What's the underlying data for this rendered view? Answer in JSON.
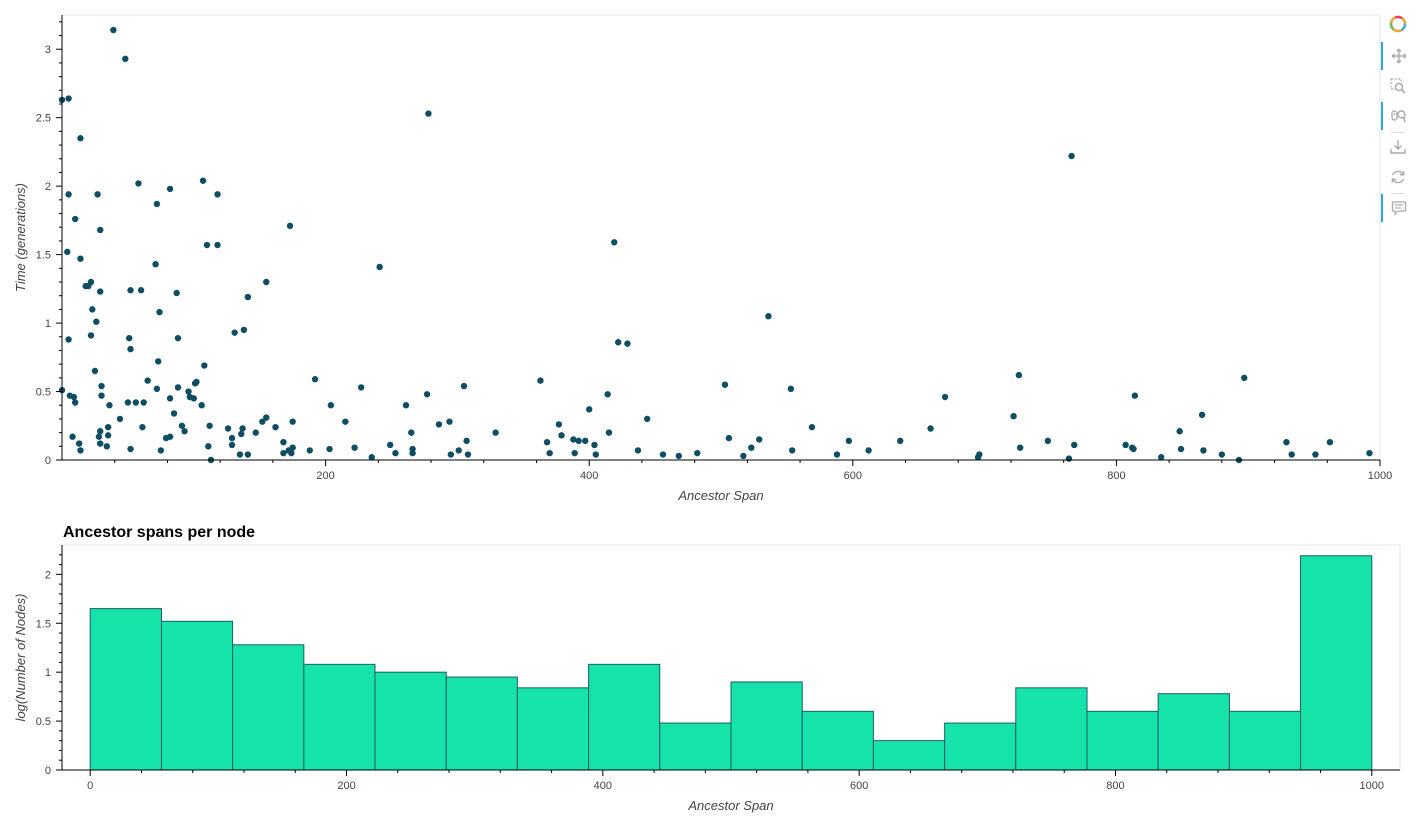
{
  "colors": {
    "point": "#0f4d63",
    "bar_fill": "#16e3aa",
    "bar_stroke": "#1d5d63",
    "axis": "#000000",
    "plot_border": "#e5e5e5",
    "tool_active": "#26aae1",
    "tool_icon": "#aaaaaa"
  },
  "toolbar": {
    "tools": [
      {
        "icon": "bokeh-logo-icon",
        "active": false
      },
      {
        "icon": "pan-icon",
        "active": true
      },
      {
        "icon": "box-zoom-icon",
        "active": false
      },
      {
        "icon": "wheel-zoom-icon",
        "active": true
      },
      {
        "icon": "save-icon",
        "active": false
      },
      {
        "icon": "reset-icon",
        "active": false
      },
      {
        "icon": "hover-icon",
        "active": true
      }
    ]
  },
  "chart_data": [
    {
      "type": "scatter",
      "title": "",
      "xlabel": "Ancestor Span",
      "ylabel": "Time (generations)",
      "xlim": [
        0,
        1000
      ],
      "ylim": [
        0,
        3.25
      ],
      "xticks": [
        "200",
        "400",
        "600",
        "800",
        "1000"
      ],
      "yticks": [
        "0",
        "0.5",
        "1",
        "1.5",
        "2",
        "2.5",
        "3"
      ],
      "grid": false,
      "points": [
        [
          39,
          3.14
        ],
        [
          48,
          2.93
        ],
        [
          0,
          2.63
        ],
        [
          5,
          2.64
        ],
        [
          278,
          2.53
        ],
        [
          14,
          2.35
        ],
        [
          766,
          2.22
        ],
        [
          5,
          1.94
        ],
        [
          27,
          1.94
        ],
        [
          58,
          2.02
        ],
        [
          82,
          1.98
        ],
        [
          107,
          2.04
        ],
        [
          118,
          1.94
        ],
        [
          72,
          1.87
        ],
        [
          10,
          1.76
        ],
        [
          29,
          1.68
        ],
        [
          4,
          1.52
        ],
        [
          14,
          1.47
        ],
        [
          110,
          1.57
        ],
        [
          118,
          1.57
        ],
        [
          173,
          1.71
        ],
        [
          241,
          1.41
        ],
        [
          419,
          1.59
        ],
        [
          71,
          1.43
        ],
        [
          22,
          1.3
        ],
        [
          18,
          1.27
        ],
        [
          20,
          1.27
        ],
        [
          29,
          1.23
        ],
        [
          52,
          1.24
        ],
        [
          60,
          1.24
        ],
        [
          87,
          1.22
        ],
        [
          141,
          1.19
        ],
        [
          155,
          1.3
        ],
        [
          23,
          1.1
        ],
        [
          74,
          1.08
        ],
        [
          26,
          1.01
        ],
        [
          536,
          1.05
        ],
        [
          5,
          0.88
        ],
        [
          22,
          0.91
        ],
        [
          51,
          0.89
        ],
        [
          88,
          0.89
        ],
        [
          131,
          0.93
        ],
        [
          138,
          0.95
        ],
        [
          52,
          0.81
        ],
        [
          422,
          0.86
        ],
        [
          429,
          0.85
        ],
        [
          25,
          0.65
        ],
        [
          73,
          0.72
        ],
        [
          108,
          0.69
        ],
        [
          65,
          0.58
        ],
        [
          102,
          0.57
        ],
        [
          101,
          0.56
        ],
        [
          192,
          0.59
        ],
        [
          0,
          0.51
        ],
        [
          30,
          0.54
        ],
        [
          72,
          0.52
        ],
        [
          88,
          0.53
        ],
        [
          96,
          0.5
        ],
        [
          227,
          0.53
        ],
        [
          305,
          0.54
        ],
        [
          363,
          0.58
        ],
        [
          503,
          0.55
        ],
        [
          553,
          0.52
        ],
        [
          726,
          0.62
        ],
        [
          897,
          0.6
        ],
        [
          6,
          0.47
        ],
        [
          9,
          0.46
        ],
        [
          30,
          0.47
        ],
        [
          10,
          0.42
        ],
        [
          36,
          0.4
        ],
        [
          50,
          0.42
        ],
        [
          56,
          0.42
        ],
        [
          62,
          0.42
        ],
        [
          82,
          0.45
        ],
        [
          97,
          0.46
        ],
        [
          106,
          0.4
        ],
        [
          100,
          0.45
        ],
        [
          204,
          0.4
        ],
        [
          261,
          0.4
        ],
        [
          277,
          0.48
        ],
        [
          414,
          0.48
        ],
        [
          400,
          0.37
        ],
        [
          670,
          0.46
        ],
        [
          814,
          0.47
        ],
        [
          85,
          0.34
        ],
        [
          44,
          0.3
        ],
        [
          155,
          0.31
        ],
        [
          152,
          0.28
        ],
        [
          175,
          0.28
        ],
        [
          215,
          0.28
        ],
        [
          286,
          0.26
        ],
        [
          294,
          0.28
        ],
        [
          444,
          0.3
        ],
        [
          722,
          0.32
        ],
        [
          865,
          0.33
        ],
        [
          35,
          0.24
        ],
        [
          61,
          0.24
        ],
        [
          91,
          0.25
        ],
        [
          112,
          0.25
        ],
        [
          126,
          0.23
        ],
        [
          137,
          0.23
        ],
        [
          162,
          0.24
        ],
        [
          377,
          0.26
        ],
        [
          569,
          0.24
        ],
        [
          659,
          0.23
        ],
        [
          29,
          0.21
        ],
        [
          93,
          0.21
        ],
        [
          136,
          0.19
        ],
        [
          147,
          0.2
        ],
        [
          265,
          0.2
        ],
        [
          329,
          0.2
        ],
        [
          379,
          0.18
        ],
        [
          415,
          0.2
        ],
        [
          35,
          0.18
        ],
        [
          28,
          0.17
        ],
        [
          79,
          0.16
        ],
        [
          82,
          0.17
        ],
        [
          8,
          0.17
        ],
        [
          129,
          0.16
        ],
        [
          168,
          0.13
        ],
        [
          307,
          0.14
        ],
        [
          368,
          0.13
        ],
        [
          388,
          0.15
        ],
        [
          392,
          0.14
        ],
        [
          397,
          0.14
        ],
        [
          506,
          0.16
        ],
        [
          529,
          0.15
        ],
        [
          597,
          0.14
        ],
        [
          636,
          0.14
        ],
        [
          748,
          0.14
        ],
        [
          807,
          0.11
        ],
        [
          848,
          0.21
        ],
        [
          929,
          0.13
        ],
        [
          962,
          0.13
        ],
        [
          13,
          0.12
        ],
        [
          29,
          0.12
        ],
        [
          34,
          0.1
        ],
        [
          129,
          0.11
        ],
        [
          111,
          0.1
        ],
        [
          175,
          0.09
        ],
        [
          249,
          0.11
        ],
        [
          404,
          0.11
        ],
        [
          727,
          0.09
        ],
        [
          768,
          0.11
        ],
        [
          812,
          0.09
        ],
        [
          14,
          0.07
        ],
        [
          52,
          0.08
        ],
        [
          75,
          0.07
        ],
        [
          172,
          0.07
        ],
        [
          188,
          0.07
        ],
        [
          203,
          0.08
        ],
        [
          222,
          0.09
        ],
        [
          266,
          0.08
        ],
        [
          301,
          0.07
        ],
        [
          437,
          0.07
        ],
        [
          523,
          0.09
        ],
        [
          554,
          0.07
        ],
        [
          612,
          0.07
        ],
        [
          813,
          0.08
        ],
        [
          849,
          0.08
        ],
        [
          866,
          0.07
        ],
        [
          168,
          0.05
        ],
        [
          174,
          0.05
        ],
        [
          135,
          0.04
        ],
        [
          141,
          0.04
        ],
        [
          253,
          0.05
        ],
        [
          266,
          0.05
        ],
        [
          295,
          0.04
        ],
        [
          308,
          0.04
        ],
        [
          370,
          0.05
        ],
        [
          389,
          0.05
        ],
        [
          405,
          0.04
        ],
        [
          456,
          0.04
        ],
        [
          482,
          0.05
        ],
        [
          468,
          0.03
        ],
        [
          588,
          0.04
        ],
        [
          696,
          0.04
        ],
        [
          880,
          0.04
        ],
        [
          933,
          0.04
        ],
        [
          951,
          0.04
        ],
        [
          992,
          0.05
        ],
        [
          113,
          0.0
        ],
        [
          235,
          0.02
        ],
        [
          517,
          0.03
        ],
        [
          695,
          0.02
        ],
        [
          764,
          0.01
        ],
        [
          834,
          0.02
        ],
        [
          893,
          0.0
        ]
      ]
    },
    {
      "type": "bar",
      "title": "Ancestor spans per node",
      "xlabel": "Ancestor Span",
      "ylabel": "log(Number of Nodes)",
      "xlim": [
        -22,
        1022
      ],
      "ylim": [
        0,
        2.3
      ],
      "xticks": [
        "0",
        "200",
        "400",
        "600",
        "800",
        "1000"
      ],
      "yticks": [
        "0",
        "0.5",
        "1",
        "1.5",
        "2"
      ],
      "grid": false,
      "bin_edges": [
        0,
        55.6,
        111.1,
        166.7,
        222.2,
        277.8,
        333.3,
        388.9,
        444.4,
        500,
        555.6,
        611.1,
        666.7,
        722.2,
        777.8,
        833.3,
        888.9,
        944.4,
        1000
      ],
      "values": [
        1.65,
        1.52,
        1.28,
        1.08,
        1.0,
        0.95,
        0.84,
        1.08,
        0.48,
        0.9,
        0.6,
        0.3,
        0.48,
        0.84,
        0.6,
        0.78,
        0.6,
        2.19
      ]
    }
  ]
}
